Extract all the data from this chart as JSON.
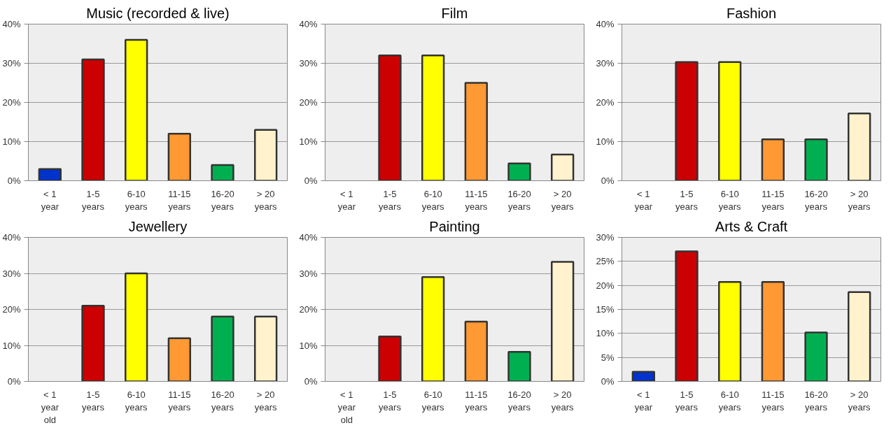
{
  "chart_data": [
    {
      "type": "bar",
      "title": "Music (recorded & live)",
      "categories": [
        "< 1\nyear",
        "1-5\nyears",
        "6-10\nyears",
        "11-15\nyears",
        "16-20\nyears",
        "> 20\nyears"
      ],
      "values": [
        3,
        31,
        36,
        12,
        4,
        13
      ],
      "colors": [
        "#0033cc",
        "#cc0000",
        "#ffff00",
        "#ff9933",
        "#00b050",
        "#fff2cc"
      ],
      "ylim": [
        0,
        40
      ],
      "yticks": [
        {
          "value": 0,
          "label": "0%"
        },
        {
          "value": 10,
          "label": "10%"
        },
        {
          "value": 20,
          "label": "20%"
        },
        {
          "value": 30,
          "label": "30%"
        },
        {
          "value": 40,
          "label": "40%"
        }
      ],
      "grid": "y"
    },
    {
      "type": "bar",
      "title": "Film",
      "categories": [
        "< 1\nyear",
        "1-5\nyears",
        "6-10\nyears",
        "11-15\nyears",
        "16-20\nyears",
        "> 20\nyears"
      ],
      "values": [
        null,
        32,
        32,
        25,
        4.4,
        6.7
      ],
      "colors": [
        "#0033cc",
        "#cc0000",
        "#ffff00",
        "#ff9933",
        "#00b050",
        "#fff2cc"
      ],
      "ylim": [
        0,
        40
      ],
      "yticks": [
        {
          "value": 0,
          "label": "0%"
        },
        {
          "value": 10,
          "label": "10%"
        },
        {
          "value": 20,
          "label": "20%"
        },
        {
          "value": 30,
          "label": "30%"
        },
        {
          "value": 40,
          "label": "40%"
        }
      ],
      "grid": "y"
    },
    {
      "type": "bar",
      "title": "Fashion",
      "categories": [
        "< 1\nyear",
        "1-5\nyears",
        "6-10\nyears",
        "11-15\nyears",
        "16-20\nyears",
        "> 20\nyears"
      ],
      "values": [
        null,
        30.3,
        30.3,
        10.6,
        10.6,
        17.2
      ],
      "colors": [
        "#0033cc",
        "#cc0000",
        "#ffff00",
        "#ff9933",
        "#00b050",
        "#fff2cc"
      ],
      "ylim": [
        0,
        40
      ],
      "yticks": [
        {
          "value": 0,
          "label": "0%"
        },
        {
          "value": 10,
          "label": "10%"
        },
        {
          "value": 20,
          "label": "20%"
        },
        {
          "value": 30,
          "label": "30%"
        },
        {
          "value": 40,
          "label": "40%"
        }
      ],
      "grid": "y"
    },
    {
      "type": "bar",
      "title": "Jewellery",
      "categories": [
        "< 1\nyear\nold",
        "1-5\nyears",
        "6-10\nyears",
        "11-15\nyears",
        "16-20\nyears",
        "> 20\nyears"
      ],
      "values": [
        null,
        21,
        30,
        12,
        18,
        18
      ],
      "colors": [
        "#0033cc",
        "#cc0000",
        "#ffff00",
        "#ff9933",
        "#00b050",
        "#fff2cc"
      ],
      "ylim": [
        0,
        40
      ],
      "yticks": [
        {
          "value": 0,
          "label": "0%"
        },
        {
          "value": 10,
          "label": "10%"
        },
        {
          "value": 20,
          "label": "20%"
        },
        {
          "value": 30,
          "label": "30%"
        },
        {
          "value": 40,
          "label": "40%"
        }
      ],
      "grid": "y"
    },
    {
      "type": "bar",
      "title": "Painting",
      "categories": [
        "< 1\nyear\nold",
        "1-5\nyears",
        "6-10\nyears",
        "11-15\nyears",
        "16-20\nyears",
        "> 20\nyears"
      ],
      "values": [
        null,
        12.5,
        29,
        16.6,
        8.2,
        33.2
      ],
      "colors": [
        "#0033cc",
        "#cc0000",
        "#ffff00",
        "#ff9933",
        "#00b050",
        "#fff2cc"
      ],
      "ylim": [
        0,
        40
      ],
      "yticks": [
        {
          "value": 0,
          "label": "0%"
        },
        {
          "value": 10,
          "label": "10%"
        },
        {
          "value": 20,
          "label": "20%"
        },
        {
          "value": 30,
          "label": "30%"
        },
        {
          "value": 40,
          "label": "40%"
        }
      ],
      "grid": "y"
    },
    {
      "type": "bar",
      "title": "Arts & Craft",
      "categories": [
        "< 1\nyear",
        "1-5\nyears",
        "6-10\nyears",
        "11-15\nyears",
        "16-20\nyears",
        "> 20\nyears"
      ],
      "values": [
        2,
        27.1,
        20.7,
        20.7,
        10.2,
        18.6
      ],
      "colors": [
        "#0033cc",
        "#cc0000",
        "#ffff00",
        "#ff9933",
        "#00b050",
        "#fff2cc"
      ],
      "ylim": [
        0,
        30
      ],
      "yticks": [
        {
          "value": 0,
          "label": "0%"
        },
        {
          "value": 5,
          "label": "5%"
        },
        {
          "value": 10,
          "label": "10%"
        },
        {
          "value": 15,
          "label": "15%"
        },
        {
          "value": 20,
          "label": "20%"
        },
        {
          "value": 25,
          "label": "25%"
        },
        {
          "value": 30,
          "label": "30%"
        }
      ],
      "grid": "y"
    }
  ]
}
